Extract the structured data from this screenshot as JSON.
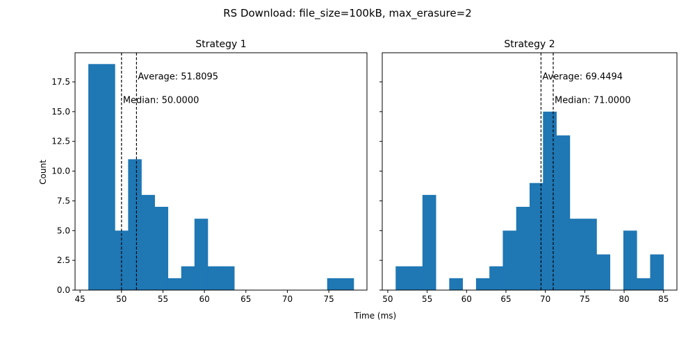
{
  "figure": {
    "suptitle": "RS Download: file_size=100kB, max_erasure=2",
    "xlabel": "Time (ms)",
    "ylabel": "Count"
  },
  "chart_data": [
    {
      "type": "bar",
      "title": "Strategy 1",
      "xlabel": "Time (ms)",
      "ylabel": "Count",
      "xlim": [
        44.4,
        79.6
      ],
      "ylim": [
        0,
        19.95
      ],
      "x_ticks": [
        45,
        50,
        55,
        60,
        65,
        70,
        75
      ],
      "y_ticks": [
        0.0,
        2.5,
        5.0,
        7.5,
        10.0,
        12.5,
        15.0,
        17.5
      ],
      "y_tick_labels": [
        "0.0",
        "2.5",
        "5.0",
        "7.5",
        "10.0",
        "12.5",
        "15.0",
        "17.5"
      ],
      "bin_edges": [
        46.0,
        47.6,
        49.2,
        50.8,
        52.4,
        54.0,
        55.6,
        57.2,
        58.8,
        60.4,
        62.0,
        63.6,
        65.2,
        66.8,
        68.4,
        70.0,
        71.6,
        73.2,
        74.8,
        76.4,
        78.0
      ],
      "counts": [
        19,
        19,
        5,
        11,
        8,
        7,
        1,
        2,
        6,
        2,
        2,
        0,
        0,
        0,
        0,
        0,
        0,
        0,
        1,
        1
      ],
      "color": "#1f77b4",
      "annotations": [
        {
          "kind": "average",
          "x": 51.8095,
          "label": "Average: 51.8095",
          "label_y": 18
        },
        {
          "kind": "median",
          "x": 50.0,
          "label": "Median: 50.0000",
          "label_y": 16
        }
      ]
    },
    {
      "type": "bar",
      "title": "Strategy 2",
      "xlabel": "",
      "ylabel": "",
      "xlim": [
        49.3,
        86.7
      ],
      "ylim": [
        0,
        19.95
      ],
      "x_ticks": [
        50,
        55,
        60,
        65,
        70,
        75,
        80,
        85
      ],
      "y_ticks": [
        0.0,
        2.5,
        5.0,
        7.5,
        10.0,
        12.5,
        15.0,
        17.5
      ],
      "y_tick_labels": [],
      "bin_edges": [
        51.0,
        52.7,
        54.4,
        56.1,
        57.8,
        59.5,
        61.2,
        62.9,
        64.6,
        66.3,
        68.0,
        69.7,
        71.4,
        73.1,
        74.8,
        76.5,
        78.2,
        79.9,
        81.6,
        83.3,
        85.0
      ],
      "counts": [
        2,
        2,
        8,
        0,
        1,
        0,
        1,
        2,
        5,
        7,
        9,
        15,
        13,
        6,
        6,
        3,
        0,
        5,
        1,
        3
      ],
      "color": "#1f77b4",
      "annotations": [
        {
          "kind": "average",
          "x": 69.4494,
          "label": "Average: 69.4494",
          "label_y": 18
        },
        {
          "kind": "median",
          "x": 71.0,
          "label": "Median: 71.0000",
          "label_y": 16
        }
      ]
    }
  ]
}
